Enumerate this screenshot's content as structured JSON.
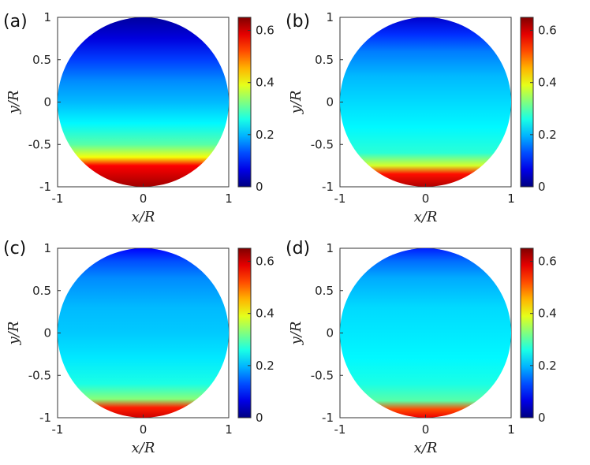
{
  "chart_data": [
    {
      "type": "heatmap",
      "panel_label": "(a)",
      "xlabel": "x/R",
      "ylabel": "y/R",
      "x_ticks": [
        "-1",
        "0",
        "1"
      ],
      "y_ticks": [
        "1",
        "0.5",
        "0",
        "-0.5",
        "-1"
      ],
      "xlim": [
        -1,
        1
      ],
      "ylim": [
        -1,
        1
      ],
      "domain": "unit circle",
      "colormap": "jet",
      "colorbar_range": [
        0,
        0.65
      ],
      "colorbar_ticks": [
        "0.6",
        "0.4",
        "0.2",
        "0"
      ],
      "profile_y": [
        1.0,
        0.75,
        0.5,
        0.25,
        0.0,
        -0.25,
        -0.5,
        -0.65,
        -0.75,
        -1.0
      ],
      "profile_value": [
        0.02,
        0.06,
        0.12,
        0.17,
        0.2,
        0.24,
        0.3,
        0.4,
        0.57,
        0.63
      ]
    },
    {
      "type": "heatmap",
      "panel_label": "(b)",
      "xlabel": "x/R",
      "ylabel": "y/R",
      "x_ticks": [
        "-1",
        "0",
        "1"
      ],
      "y_ticks": [
        "1",
        "0.5",
        "0",
        "-0.5",
        "-1"
      ],
      "xlim": [
        -1,
        1
      ],
      "ylim": [
        -1,
        1
      ],
      "domain": "unit circle",
      "colormap": "jet",
      "colorbar_range": [
        0,
        0.65
      ],
      "colorbar_ticks": [
        "0.6",
        "0.4",
        "0.2",
        "0"
      ],
      "profile_y": [
        1.0,
        0.8,
        0.6,
        0.3,
        0.0,
        -0.3,
        -0.6,
        -0.75,
        -0.85,
        -1.0
      ],
      "profile_value": [
        0.05,
        0.11,
        0.16,
        0.2,
        0.22,
        0.24,
        0.27,
        0.38,
        0.56,
        0.62
      ]
    },
    {
      "type": "heatmap",
      "panel_label": "(c)",
      "xlabel": "x/R",
      "ylabel": "y/R",
      "x_ticks": [
        "-1",
        "0",
        "1"
      ],
      "y_ticks": [
        "1",
        "0.5",
        "0",
        "-0.5",
        "-1"
      ],
      "xlim": [
        -1,
        1
      ],
      "ylim": [
        -1,
        1
      ],
      "domain": "unit circle",
      "colormap": "jet",
      "colorbar_range": [
        0,
        0.65
      ],
      "colorbar_ticks": [
        "0.6",
        "0.4",
        "0.2",
        "0"
      ],
      "profile_y": [
        1.0,
        0.85,
        0.65,
        0.3,
        0.0,
        -0.3,
        -0.6,
        -0.78,
        -0.88,
        -1.0
      ],
      "profile_value": [
        0.08,
        0.13,
        0.17,
        0.2,
        0.21,
        0.23,
        0.26,
        0.33,
        0.55,
        0.6
      ]
    },
    {
      "type": "heatmap",
      "panel_label": "(d)",
      "xlabel": "x/R",
      "ylabel": "y/R",
      "x_ticks": [
        "-1",
        "0",
        "1"
      ],
      "y_ticks": [
        "1",
        "0.5",
        "0",
        "-0.5",
        "-1"
      ],
      "xlim": [
        -1,
        1
      ],
      "ylim": [
        -1,
        1
      ],
      "domain": "unit circle",
      "colormap": "jet",
      "colorbar_range": [
        0,
        0.65
      ],
      "colorbar_ticks": [
        "0.6",
        "0.4",
        "0.2",
        "0"
      ],
      "profile_y": [
        1.0,
        0.85,
        0.65,
        0.3,
        0.0,
        -0.3,
        -0.6,
        -0.8,
        -0.9,
        -1.0
      ],
      "profile_value": [
        0.1,
        0.15,
        0.19,
        0.22,
        0.23,
        0.24,
        0.26,
        0.3,
        0.52,
        0.58
      ]
    }
  ]
}
